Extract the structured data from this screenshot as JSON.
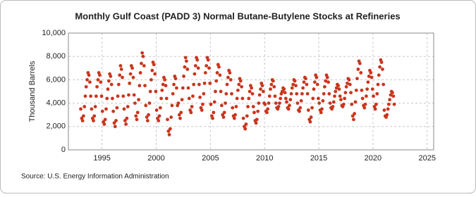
{
  "chart_data": {
    "type": "scatter",
    "title": "Monthly Gulf Coast (PADD 3) Normal Butane-Butylene Stocks at Refineries",
    "y_label": "Thousand Barrels",
    "source": "Source: U.S. Energy Information Administration",
    "color": "#c8361e",
    "grid": true,
    "xlim": [
      1991.9,
      2025.6
    ],
    "xticks": [
      1995,
      2000,
      2005,
      2010,
      2015,
      2020,
      2025
    ],
    "ylim": [
      0,
      10000
    ],
    "yticks": [
      0,
      {
        "value": 2000,
        "label": "2,000"
      },
      {
        "value": 4000,
        "label": "4,000"
      },
      {
        "value": 6000,
        "label": "6,000"
      },
      {
        "value": 8000,
        "label": "8,000"
      },
      {
        "value": 10000,
        "label": "10,000"
      }
    ],
    "x": [
      1993.04,
      1993.13,
      1993.21,
      1993.29,
      1993.38,
      1993.46,
      1993.54,
      1993.63,
      1993.71,
      1993.79,
      1993.88,
      1993.96,
      1994.04,
      1994.13,
      1994.21,
      1994.29,
      1994.38,
      1994.46,
      1994.54,
      1994.63,
      1994.71,
      1994.79,
      1994.88,
      1994.96,
      1995.04,
      1995.13,
      1995.21,
      1995.29,
      1995.38,
      1995.46,
      1995.54,
      1995.63,
      1995.71,
      1995.79,
      1995.88,
      1995.96,
      1996.04,
      1996.13,
      1996.21,
      1996.29,
      1996.38,
      1996.46,
      1996.54,
      1996.63,
      1996.71,
      1996.79,
      1996.88,
      1996.96,
      1997.04,
      1997.13,
      1997.21,
      1997.29,
      1997.38,
      1997.46,
      1997.54,
      1997.63,
      1997.71,
      1997.79,
      1997.88,
      1997.96,
      1998.04,
      1998.13,
      1998.21,
      1998.29,
      1998.38,
      1998.46,
      1998.54,
      1998.63,
      1998.71,
      1998.79,
      1998.88,
      1998.96,
      1999.04,
      1999.13,
      1999.21,
      1999.29,
      1999.38,
      1999.46,
      1999.54,
      1999.63,
      1999.71,
      1999.79,
      1999.88,
      1999.96,
      2000.04,
      2000.13,
      2000.21,
      2000.29,
      2000.38,
      2000.46,
      2000.54,
      2000.63,
      2000.71,
      2000.79,
      2000.88,
      2000.96,
      2001.04,
      2001.13,
      2001.21,
      2001.29,
      2001.38,
      2001.46,
      2001.54,
      2001.63,
      2001.71,
      2001.79,
      2001.88,
      2001.96,
      2002.04,
      2002.13,
      2002.21,
      2002.29,
      2002.38,
      2002.46,
      2002.54,
      2002.63,
      2002.71,
      2002.79,
      2002.88,
      2002.96,
      2003.04,
      2003.13,
      2003.21,
      2003.29,
      2003.38,
      2003.46,
      2003.54,
      2003.63,
      2003.71,
      2003.79,
      2003.88,
      2003.96,
      2004.04,
      2004.13,
      2004.21,
      2004.29,
      2004.38,
      2004.46,
      2004.54,
      2004.63,
      2004.71,
      2004.79,
      2004.88,
      2004.96,
      2005.04,
      2005.13,
      2005.21,
      2005.29,
      2005.38,
      2005.46,
      2005.54,
      2005.63,
      2005.71,
      2005.79,
      2005.88,
      2005.96,
      2006.04,
      2006.13,
      2006.21,
      2006.29,
      2006.38,
      2006.46,
      2006.54,
      2006.63,
      2006.71,
      2006.79,
      2006.88,
      2006.96,
      2007.04,
      2007.13,
      2007.21,
      2007.29,
      2007.38,
      2007.46,
      2007.54,
      2007.63,
      2007.71,
      2007.79,
      2007.88,
      2007.96,
      2008.04,
      2008.13,
      2008.21,
      2008.29,
      2008.38,
      2008.46,
      2008.54,
      2008.63,
      2008.71,
      2008.79,
      2008.88,
      2008.96,
      2009.04,
      2009.13,
      2009.21,
      2009.29,
      2009.38,
      2009.46,
      2009.54,
      2009.63,
      2009.71,
      2009.79,
      2009.88,
      2009.96,
      2010.04,
      2010.13,
      2010.21,
      2010.29,
      2010.38,
      2010.46,
      2010.54,
      2010.63,
      2010.71,
      2010.79,
      2010.88,
      2010.96,
      2011.04,
      2011.13,
      2011.21,
      2011.29,
      2011.38,
      2011.46,
      2011.54,
      2011.63,
      2011.71,
      2011.79,
      2011.88,
      2011.96,
      2012.04,
      2012.13,
      2012.21,
      2012.29,
      2012.38,
      2012.46,
      2012.54,
      2012.63,
      2012.71,
      2012.79,
      2012.88,
      2012.96,
      2013.04,
      2013.13,
      2013.21,
      2013.29,
      2013.38,
      2013.46,
      2013.54,
      2013.63,
      2013.71,
      2013.79,
      2013.88,
      2013.96,
      2014.04,
      2014.13,
      2014.21,
      2014.29,
      2014.38,
      2014.46,
      2014.54,
      2014.63,
      2014.71,
      2014.79,
      2014.88,
      2014.96,
      2015.04,
      2015.13,
      2015.21,
      2015.29,
      2015.38,
      2015.46,
      2015.54,
      2015.63,
      2015.71,
      2015.79,
      2015.88,
      2015.96,
      2016.04,
      2016.13,
      2016.21,
      2016.29,
      2016.38,
      2016.46,
      2016.54,
      2016.63,
      2016.71,
      2016.79,
      2016.88,
      2016.96,
      2017.04,
      2017.13,
      2017.21,
      2017.29,
      2017.38,
      2017.46,
      2017.54,
      2017.63,
      2017.71,
      2017.79,
      2017.88,
      2017.96,
      2018.04,
      2018.13,
      2018.21,
      2018.29,
      2018.38,
      2018.46,
      2018.54,
      2018.63,
      2018.71,
      2018.79,
      2018.88,
      2018.96,
      2019.04,
      2019.13,
      2019.21,
      2019.29,
      2019.38,
      2019.46,
      2019.54,
      2019.63,
      2019.71,
      2019.79,
      2019.88,
      2019.96,
      2020.04,
      2020.13,
      2020.21,
      2020.29,
      2020.38,
      2020.46,
      2020.54,
      2020.63,
      2020.71,
      2020.79,
      2020.88,
      2020.96,
      2021.04,
      2021.13,
      2021.21,
      2021.29,
      2021.38,
      2021.46,
      2021.54,
      2021.63,
      2021.71,
      2021.79,
      2021.88,
      2021.96
    ],
    "values": [
      3500,
      2700,
      2500,
      2900,
      3700,
      4600,
      5400,
      6000,
      6600,
      6400,
      5800,
      4600,
      3500,
      2700,
      2500,
      2900,
      3700,
      4600,
      5400,
      6000,
      6600,
      6400,
      5800,
      4600,
      3300,
      2400,
      2200,
      2600,
      3500,
      4400,
      5200,
      5900,
      6500,
      6300,
      5600,
      4400,
      3300,
      2300,
      2000,
      2500,
      3600,
      4600,
      5600,
      6400,
      7200,
      6900,
      6200,
      4600,
      3500,
      2500,
      2200,
      2700,
      3700,
      4700,
      5700,
      6500,
      7200,
      7000,
      6200,
      4700,
      4000,
      2900,
      2600,
      3200,
      4300,
      5500,
      6600,
      7400,
      8300,
      8000,
      7200,
      5500,
      3800,
      2800,
      2500,
      3000,
      4000,
      5000,
      6000,
      6800,
      7500,
      7300,
      6500,
      5000,
      3400,
      2700,
      2500,
      2900,
      3600,
      4400,
      5100,
      5600,
      6200,
      6000,
      5500,
      4400,
      2600,
      1600,
      1300,
      1800,
      2800,
      3800,
      4800,
      5600,
      6300,
      6100,
      5300,
      3800,
      4000,
      3000,
      2700,
      3200,
      4300,
      5300,
      6300,
      7100,
      7900,
      7600,
      6900,
      5300,
      4400,
      3400,
      3200,
      3700,
      4600,
      5600,
      6500,
      7200,
      7900,
      7700,
      7000,
      5600,
      4500,
      3600,
      3400,
      3900,
      4800,
      5700,
      6600,
      7200,
      7900,
      7700,
      7000,
      5700,
      3900,
      2900,
      2700,
      3200,
      4100,
      5000,
      5900,
      6600,
      7300,
      7100,
      6400,
      5000,
      3800,
      3000,
      2800,
      3200,
      4000,
      4800,
      5600,
      6200,
      6800,
      6600,
      6000,
      4800,
      3600,
      2900,
      2700,
      3000,
      3700,
      4400,
      5100,
      5600,
      6100,
      5900,
      5400,
      4400,
      2700,
      2000,
      1800,
      2200,
      2900,
      3700,
      4400,
      5000,
      5500,
      5300,
      4800,
      3700,
      3200,
      2500,
      2300,
      2600,
      3300,
      4000,
      4700,
      5200,
      5700,
      5500,
      5000,
      4000,
      3900,
      3300,
      3200,
      3500,
      4000,
      4600,
      5200,
      5600,
      6000,
      5900,
      5400,
      4600,
      4000,
      3600,
      3500,
      3700,
      4000,
      4400,
      4800,
      5000,
      5300,
      5200,
      4900,
      4400,
      4100,
      3600,
      3500,
      3800,
      4300,
      4800,
      5300,
      5600,
      6000,
      5900,
      5500,
      4800,
      4000,
      3400,
      3300,
      3600,
      4200,
      4800,
      5300,
      5800,
      6200,
      6100,
      5600,
      4800,
      3400,
      2600,
      2400,
      2800,
      3600,
      4400,
      5200,
      5800,
      6400,
      6200,
      5600,
      4400,
      4000,
      3400,
      3200,
      3500,
      4200,
      4800,
      5400,
      5900,
      6400,
      6200,
      5800,
      4800,
      4000,
      3600,
      3500,
      3700,
      4100,
      4600,
      5000,
      5300,
      5600,
      5500,
      5200,
      4600,
      4300,
      3800,
      3700,
      3900,
      4400,
      4900,
      5400,
      5700,
      6100,
      6000,
      5600,
      4900,
      3900,
      2900,
      2600,
      3100,
      4100,
      5100,
      6100,
      6900,
      7600,
      7400,
      6600,
      5100,
      4400,
      3800,
      3600,
      3900,
      4600,
      5200,
      5800,
      6300,
      6800,
      6600,
      6200,
      5200,
      4600,
      3700,
      3500,
      3900,
      4800,
      5600,
      6400,
      7100,
      7700,
      7500,
      6900,
      5600,
      3400,
      2900,
      2800,
      3000,
      3500,
      3900,
      4300,
      4700,
      5000,
      4900,
      4600,
      3900
    ]
  }
}
